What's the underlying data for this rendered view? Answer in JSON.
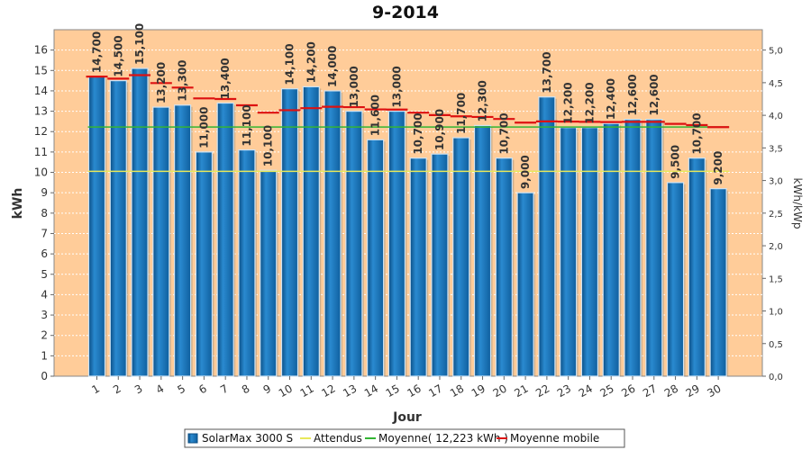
{
  "chart_data": {
    "type": "bar",
    "title": "9-2014",
    "xlabel": "Jour",
    "ylabel": "kWh",
    "y2label": "kWh/kWp",
    "ylim": [
      0,
      17
    ],
    "y2lim": [
      0,
      5.3125
    ],
    "yticks": [
      0,
      1,
      2,
      3,
      4,
      5,
      6,
      7,
      8,
      9,
      10,
      11,
      12,
      13,
      14,
      15,
      16
    ],
    "y2ticks": [
      "0,0",
      "0,5",
      "1,0",
      "1,5",
      "2,0",
      "2,5",
      "3,0",
      "3,5",
      "4,0",
      "4,5",
      "5,0"
    ],
    "categories": [
      "1",
      "2",
      "3",
      "4",
      "5",
      "6",
      "7",
      "8",
      "9",
      "10",
      "11",
      "12",
      "13",
      "14",
      "15",
      "16",
      "17",
      "18",
      "19",
      "20",
      "21",
      "22",
      "23",
      "24",
      "25",
      "26",
      "27",
      "28",
      "29",
      "30"
    ],
    "series": [
      {
        "name": "SolarMax 3000 S",
        "type": "bar",
        "color": "#1a74b4",
        "values": [
          14.7,
          14.5,
          15.1,
          13.2,
          13.3,
          11.0,
          13.4,
          11.1,
          10.1,
          14.1,
          14.2,
          14.0,
          13.0,
          11.6,
          13.0,
          10.7,
          10.9,
          11.7,
          12.3,
          10.7,
          9.0,
          13.7,
          12.2,
          12.2,
          12.4,
          12.6,
          12.6,
          9.5,
          10.7,
          9.2
        ],
        "labels": [
          "14,700",
          "14,500",
          "15,100",
          "13,200",
          "13,300",
          "11,000",
          "13,400",
          "11,100",
          "10,100",
          "14,100",
          "14,200",
          "14,000",
          "13,000",
          "11,600",
          "13,000",
          "10,700",
          "10,900",
          "11,700",
          "12,300",
          "10,700",
          "9,000",
          "13,700",
          "12,200",
          "12,200",
          "12,400",
          "12,600",
          "12,600",
          "9,500",
          "10,700",
          "9,200"
        ]
      },
      {
        "name": "Attendus",
        "type": "line",
        "color": "#e8e85a",
        "values": [
          10.05,
          10.05,
          10.05,
          10.05,
          10.05,
          10.05,
          10.05,
          10.05,
          10.05,
          10.05,
          10.05,
          10.05,
          10.05,
          10.05,
          10.05,
          10.05,
          10.05,
          10.05,
          10.05,
          10.05,
          10.05,
          10.05,
          10.05,
          10.05,
          10.05,
          10.05,
          10.05,
          10.05,
          10.05,
          10.05
        ]
      },
      {
        "name": "Moyenne( 12,223 kWh )",
        "type": "line",
        "color": "#33b533",
        "values": [
          12.223,
          12.223,
          12.223,
          12.223,
          12.223,
          12.223,
          12.223,
          12.223,
          12.223,
          12.223,
          12.223,
          12.223,
          12.223,
          12.223,
          12.223,
          12.223,
          12.223,
          12.223,
          12.223,
          12.223,
          12.223,
          12.223,
          12.223,
          12.223,
          12.223,
          12.223,
          12.223,
          12.223,
          12.223,
          12.223
        ]
      },
      {
        "name": "Moyenne mobile",
        "type": "step",
        "color": "#dd1111",
        "values": [
          14.7,
          14.6,
          14.77,
          14.38,
          14.16,
          13.63,
          13.6,
          13.29,
          12.93,
          13.05,
          13.15,
          13.22,
          13.2,
          13.09,
          13.08,
          12.93,
          12.81,
          12.75,
          12.72,
          12.62,
          12.44,
          12.5,
          12.49,
          12.48,
          12.47,
          12.48,
          12.48,
          12.38,
          12.32,
          12.22
        ]
      }
    ],
    "legend": {
      "position": "bottom",
      "items": [
        "SolarMax 3000 S",
        "Attendus",
        "Moyenne( 12,223 kWh )",
        "Moyenne mobile"
      ]
    },
    "plot_background": "#ffcc99",
    "grid": true
  }
}
